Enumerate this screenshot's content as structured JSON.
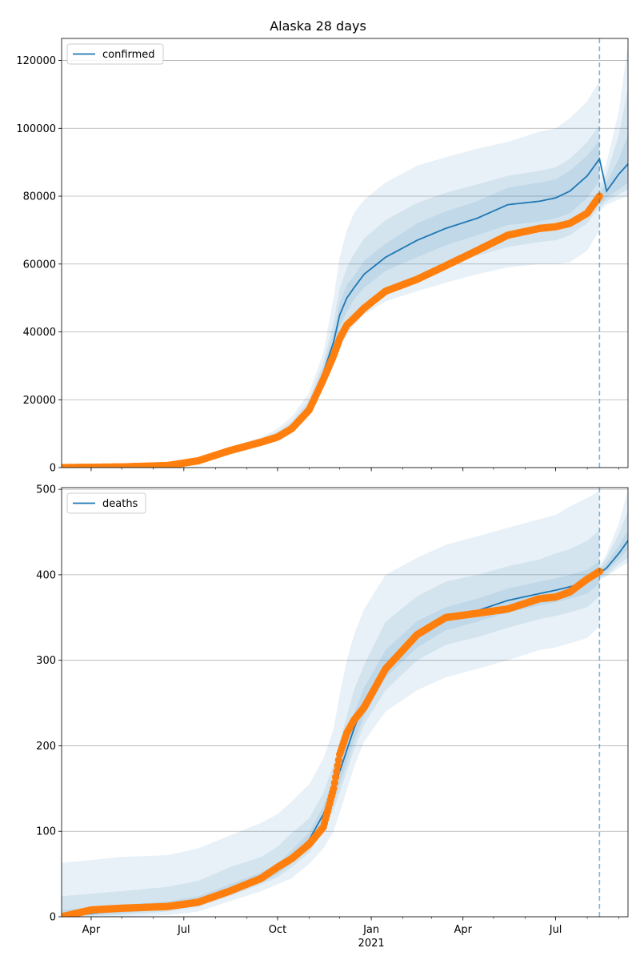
{
  "title": "Alaska 28 days",
  "colors": {
    "model_line": "#1f77b4",
    "observed": "#ff7f0e",
    "band": "#1f77b4",
    "grid": "#b0b0b0",
    "forecast_marker": "#1f77b4"
  },
  "x_axis": {
    "tick_labels": [
      "Apr",
      "Jul",
      "Oct",
      "Jan",
      "Apr",
      "Jul"
    ],
    "tick_dates": [
      "2020-04-01",
      "2020-07-01",
      "2020-10-01",
      "2021-01-01",
      "2021-04-01",
      "2021-07-01"
    ],
    "year_label": "2021",
    "range": [
      "2020-03-03",
      "2021-09-10"
    ],
    "forecast_start": "2021-08-13",
    "minor_ticks": true
  },
  "chart_data": [
    {
      "type": "line",
      "legend": [
        "confirmed"
      ],
      "legend_position": "top-left",
      "grid": true,
      "ylim": [
        0,
        126500
      ],
      "yticks": [
        0,
        20000,
        40000,
        60000,
        80000,
        100000,
        120000
      ],
      "ytick_labels": [
        "0",
        "20000",
        "40000",
        "60000",
        "80000",
        "100000",
        "120000"
      ],
      "model": {
        "x": [
          "2020-03-03",
          "2020-05-01",
          "2020-06-15",
          "2020-07-15",
          "2020-08-15",
          "2020-09-15",
          "2020-10-01",
          "2020-10-15",
          "2020-11-01",
          "2020-11-15",
          "2020-11-25",
          "2020-12-01",
          "2020-12-08",
          "2020-12-15",
          "2020-12-25",
          "2021-01-15",
          "2021-02-15",
          "2021-03-15",
          "2021-04-15",
          "2021-05-15",
          "2021-06-15",
          "2021-07-01",
          "2021-07-15",
          "2021-08-01",
          "2021-08-13",
          "2021-08-20",
          "2021-09-01",
          "2021-09-10"
        ],
        "y": [
          0,
          200,
          600,
          2000,
          5000,
          7500,
          9500,
          12000,
          18000,
          28000,
          37000,
          45000,
          50000,
          53000,
          57000,
          62000,
          67000,
          70500,
          73500,
          77500,
          78500,
          79500,
          81500,
          86000,
          91000,
          81500,
          86500,
          89500
        ]
      },
      "observed": {
        "x": [
          "2020-03-03",
          "2020-05-01",
          "2020-06-15",
          "2020-07-15",
          "2020-08-15",
          "2020-09-15",
          "2020-10-01",
          "2020-10-15",
          "2020-11-01",
          "2020-11-15",
          "2020-11-25",
          "2020-12-01",
          "2020-12-08",
          "2020-12-15",
          "2020-12-25",
          "2021-01-15",
          "2021-02-15",
          "2021-03-15",
          "2021-04-15",
          "2021-05-15",
          "2021-06-15",
          "2021-07-01",
          "2021-07-15",
          "2021-08-01",
          "2021-08-13"
        ],
        "y": [
          0,
          200,
          600,
          2000,
          5000,
          7500,
          9000,
          11500,
          17000,
          26000,
          33000,
          38000,
          42000,
          44000,
          47000,
          52000,
          55500,
          59500,
          64000,
          68500,
          70500,
          71000,
          72000,
          75000,
          80000
        ]
      },
      "bands": [
        {
          "x": [
            "2020-03-03",
            "2020-05-01",
            "2020-06-15",
            "2020-07-15",
            "2020-08-15",
            "2020-09-15",
            "2020-10-01",
            "2020-10-15",
            "2020-11-01",
            "2020-11-15",
            "2020-11-25",
            "2020-12-01",
            "2020-12-08",
            "2020-12-15",
            "2020-12-25",
            "2021-01-15",
            "2021-02-15",
            "2021-03-15",
            "2021-04-15",
            "2021-05-15",
            "2021-06-15",
            "2021-07-01",
            "2021-07-15",
            "2021-08-01",
            "2021-08-13"
          ],
          "lower": [
            0,
            150,
            450,
            1600,
            4200,
            6500,
            8300,
            10500,
            15500,
            23500,
            30000,
            35000,
            39000,
            42000,
            45000,
            49000,
            52000,
            54500,
            57000,
            59000,
            60000,
            60000,
            60500,
            64000,
            70000
          ],
          "upper": [
            0,
            300,
            800,
            2500,
            6000,
            9000,
            11500,
            15000,
            22000,
            34000,
            50000,
            62000,
            70000,
            75000,
            79000,
            84000,
            89000,
            91500,
            94000,
            96000,
            99000,
            100000,
            103000,
            108000,
            114000
          ]
        },
        {
          "x": [
            "2020-03-03",
            "2020-05-01",
            "2020-06-15",
            "2020-07-15",
            "2020-08-15",
            "2020-09-15",
            "2020-10-01",
            "2020-10-15",
            "2020-11-01",
            "2020-11-15",
            "2020-11-25",
            "2020-12-01",
            "2020-12-08",
            "2020-12-15",
            "2020-12-25",
            "2021-01-15",
            "2021-02-15",
            "2021-03-15",
            "2021-04-15",
            "2021-05-15",
            "2021-06-15",
            "2021-07-01",
            "2021-07-15",
            "2021-08-01",
            "2021-08-13"
          ],
          "lower": [
            0,
            170,
            520,
            1750,
            4500,
            7000,
            8800,
            11200,
            16500,
            25000,
            32000,
            38000,
            42000,
            45000,
            48500,
            53000,
            56500,
            59500,
            62500,
            65000,
            66500,
            67000,
            68500,
            72000,
            77000
          ],
          "upper": [
            0,
            260,
            720,
            2300,
            5600,
            8400,
            10600,
            13600,
            20000,
            31000,
            43000,
            53000,
            59000,
            63000,
            67500,
            73000,
            78000,
            81000,
            83500,
            86000,
            87500,
            88500,
            91000,
            96000,
            101000
          ]
        },
        {
          "x": [
            "2020-03-03",
            "2020-05-01",
            "2020-06-15",
            "2020-07-15",
            "2020-08-15",
            "2020-09-15",
            "2020-10-01",
            "2020-10-15",
            "2020-11-01",
            "2020-11-15",
            "2020-11-25",
            "2020-12-01",
            "2020-12-08",
            "2020-12-15",
            "2020-12-25",
            "2021-01-15",
            "2021-02-15",
            "2021-03-15",
            "2021-04-15",
            "2021-05-15",
            "2021-06-15",
            "2021-07-01",
            "2021-07-15",
            "2021-08-01",
            "2021-08-13"
          ],
          "lower": [
            0,
            185,
            560,
            1850,
            4750,
            7250,
            9150,
            11600,
            17200,
            26500,
            34500,
            41500,
            46000,
            49500,
            53000,
            58000,
            62000,
            65500,
            68500,
            71500,
            72500,
            73500,
            75000,
            79500,
            84500
          ],
          "upper": [
            0,
            230,
            660,
            2150,
            5300,
            7900,
            9950,
            12600,
            18900,
            29500,
            39500,
            48500,
            54000,
            56500,
            61000,
            66000,
            72000,
            75500,
            78500,
            82500,
            84000,
            85000,
            87500,
            92000,
            96500
          ]
        },
        {
          "x": [
            "2021-08-13",
            "2021-08-20",
            "2021-09-01",
            "2021-09-10"
          ],
          "lower": [
            77500,
            79500,
            82000,
            84000
          ],
          "upper": [
            80500,
            84000,
            91000,
            98000
          ]
        },
        {
          "x": [
            "2021-08-13",
            "2021-08-20",
            "2021-09-01",
            "2021-09-10"
          ],
          "lower": [
            76500,
            78500,
            80500,
            82000
          ],
          "upper": [
            82000,
            86500,
            98000,
            112000
          ]
        },
        {
          "x": [
            "2021-08-13",
            "2021-08-20",
            "2021-09-01",
            "2021-09-10"
          ],
          "lower": [
            75500,
            77500,
            79000,
            80000
          ],
          "upper": [
            84000,
            90000,
            105000,
            125000
          ]
        }
      ]
    },
    {
      "type": "line",
      "legend": [
        "deaths"
      ],
      "legend_position": "top-left",
      "grid": true,
      "ylim": [
        0,
        502
      ],
      "yticks": [
        0,
        100,
        200,
        300,
        400,
        500
      ],
      "ytick_labels": [
        "0",
        "100",
        "200",
        "300",
        "400",
        "500"
      ],
      "model": {
        "x": [
          "2020-03-03",
          "2020-05-01",
          "2020-06-15",
          "2020-07-15",
          "2020-08-15",
          "2020-09-15",
          "2020-10-01",
          "2020-10-15",
          "2020-11-01",
          "2020-11-15",
          "2020-11-25",
          "2020-12-01",
          "2020-12-08",
          "2020-12-15",
          "2020-12-25",
          "2021-01-15",
          "2021-02-15",
          "2021-03-15",
          "2021-04-15",
          "2021-05-15",
          "2021-06-15",
          "2021-07-01",
          "2021-07-15",
          "2021-08-01",
          "2021-08-13",
          "2021-08-20",
          "2021-09-01",
          "2021-09-10"
        ],
        "y": [
          0,
          8,
          12,
          18,
          30,
          45,
          55,
          70,
          90,
          120,
          150,
          170,
          195,
          220,
          250,
          295,
          330,
          348,
          358,
          370,
          378,
          382,
          386,
          392,
          402,
          408,
          425,
          440
        ]
      },
      "observed": {
        "x": [
          "2020-03-03",
          "2020-04-01",
          "2020-05-01",
          "2020-06-15",
          "2020-07-15",
          "2020-08-15",
          "2020-09-15",
          "2020-10-01",
          "2020-10-15",
          "2020-11-01",
          "2020-11-15",
          "2020-11-25",
          "2020-12-01",
          "2020-12-08",
          "2020-12-15",
          "2020-12-25",
          "2021-01-15",
          "2021-02-15",
          "2021-03-15",
          "2021-04-15",
          "2021-05-15",
          "2021-06-15",
          "2021-07-01",
          "2021-07-15",
          "2021-08-01",
          "2021-08-13"
        ],
        "y": [
          0,
          8,
          10,
          12,
          17,
          30,
          45,
          58,
          68,
          85,
          105,
          150,
          190,
          215,
          230,
          245,
          290,
          330,
          350,
          355,
          360,
          372,
          374,
          380,
          395,
          404
        ]
      },
      "bands": [
        {
          "x": [
            "2020-03-03",
            "2020-05-01",
            "2020-06-15",
            "2020-07-15",
            "2020-08-15",
            "2020-09-15",
            "2020-10-01",
            "2020-10-15",
            "2020-11-01",
            "2020-11-15",
            "2020-11-25",
            "2020-12-01",
            "2020-12-08",
            "2020-12-15",
            "2020-12-25",
            "2021-01-15",
            "2021-02-15",
            "2021-03-15",
            "2021-04-15",
            "2021-05-15",
            "2021-06-15",
            "2021-07-01",
            "2021-07-15",
            "2021-08-01",
            "2021-08-13"
          ],
          "lower": [
            0,
            0,
            2,
            6,
            18,
            30,
            38,
            45,
            62,
            80,
            100,
            122,
            148,
            175,
            205,
            240,
            265,
            280,
            290,
            300,
            312,
            315,
            320,
            326,
            340
          ],
          "upper": [
            63,
            70,
            72,
            80,
            95,
            110,
            120,
            135,
            155,
            185,
            220,
            260,
            300,
            330,
            360,
            400,
            420,
            435,
            445,
            455,
            465,
            470,
            480,
            490,
            498
          ]
        },
        {
          "x": [
            "2020-03-03",
            "2020-05-01",
            "2020-06-15",
            "2020-07-15",
            "2020-08-15",
            "2020-09-15",
            "2020-10-01",
            "2020-10-15",
            "2020-11-01",
            "2020-11-15",
            "2020-11-25",
            "2020-12-01",
            "2020-12-08",
            "2020-12-15",
            "2020-12-25",
            "2021-01-15",
            "2021-02-15",
            "2021-03-15",
            "2021-04-15",
            "2021-05-15",
            "2021-06-15",
            "2021-07-01",
            "2021-07-15",
            "2021-08-01",
            "2021-08-13"
          ],
          "lower": [
            0,
            2,
            6,
            12,
            24,
            38,
            46,
            58,
            75,
            100,
            125,
            145,
            170,
            195,
            225,
            265,
            300,
            318,
            327,
            338,
            348,
            352,
            356,
            362,
            375
          ],
          "upper": [
            24,
            30,
            35,
            42,
            58,
            70,
            82,
            98,
            115,
            145,
            178,
            205,
            235,
            265,
            295,
            345,
            375,
            392,
            400,
            410,
            418,
            425,
            430,
            440,
            452
          ]
        },
        {
          "x": [
            "2020-03-03",
            "2020-05-01",
            "2020-06-15",
            "2020-07-15",
            "2020-08-15",
            "2020-09-15",
            "2020-10-01",
            "2020-10-15",
            "2020-11-01",
            "2020-11-15",
            "2020-11-25",
            "2020-12-01",
            "2020-12-08",
            "2020-12-15",
            "2020-12-25",
            "2021-01-15",
            "2021-02-15",
            "2021-03-15",
            "2021-04-15",
            "2021-05-15",
            "2021-06-15",
            "2021-07-01",
            "2021-07-15",
            "2021-08-01",
            "2021-08-13"
          ],
          "lower": [
            0,
            4,
            9,
            14,
            26,
            40,
            50,
            63,
            82,
            108,
            135,
            155,
            180,
            205,
            235,
            280,
            315,
            335,
            345,
            356,
            364,
            368,
            372,
            378,
            390
          ],
          "upper": [
            8,
            14,
            18,
            24,
            38,
            52,
            62,
            78,
            98,
            130,
            162,
            185,
            212,
            238,
            268,
            312,
            346,
            362,
            372,
            384,
            392,
            396,
            400,
            406,
            416
          ]
        },
        {
          "x": [
            "2021-08-13",
            "2021-08-20",
            "2021-09-01",
            "2021-09-10"
          ],
          "lower": [
            398,
            404,
            418,
            430
          ],
          "upper": [
            406,
            414,
            434,
            452
          ]
        },
        {
          "x": [
            "2021-08-13",
            "2021-08-20",
            "2021-09-01",
            "2021-09-10"
          ],
          "lower": [
            396,
            400,
            412,
            420
          ],
          "upper": [
            408,
            420,
            448,
            475
          ]
        },
        {
          "x": [
            "2021-08-13",
            "2021-08-20",
            "2021-09-01",
            "2021-09-10"
          ],
          "lower": [
            394,
            398,
            408,
            414
          ],
          "upper": [
            410,
            425,
            460,
            500
          ]
        }
      ]
    }
  ]
}
